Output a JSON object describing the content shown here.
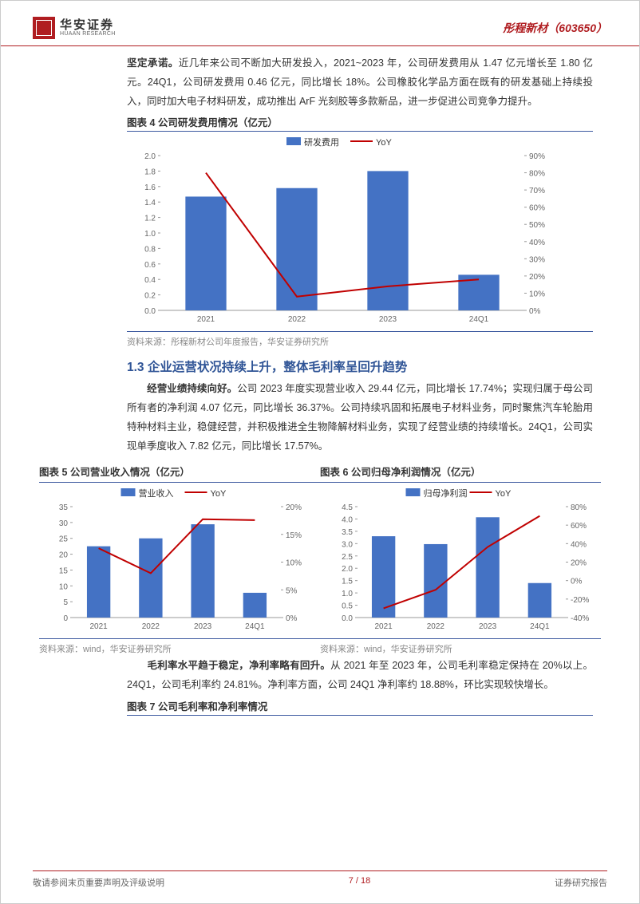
{
  "header": {
    "logo_cn": "华安证券",
    "logo_en": "HUAAN RESEARCH",
    "title": "彤程新材（603650）"
  },
  "intro_para": {
    "bold_lead": "坚定承诺。",
    "text": "近几年来公司不断加大研发投入，2021~2023 年，公司研发费用从 1.47 亿元增长至 1.80 亿元。24Q1，公司研发费用 0.46 亿元，同比增长 18%。公司橡胶化学品方面在既有的研发基础上持续投入，同时加大电子材料研发，成功推出 ArF 光刻胶等多款新品，进一步促进公司竞争力提升。"
  },
  "fig4": {
    "title": "图表 4 公司研发费用情况（亿元）",
    "legend_bar": "研发费用",
    "legend_line": "YoY",
    "categories": [
      "2021",
      "2022",
      "2023",
      "24Q1"
    ],
    "bar_values": [
      1.47,
      1.58,
      1.8,
      0.46
    ],
    "line_values_pct": [
      80,
      8,
      14,
      18
    ],
    "bar_color": "#4472c4",
    "line_color": "#c00000",
    "y1_max": 2.0,
    "y1_step": 0.2,
    "y2_max": 90,
    "y2_step": 10,
    "source": "资料来源：彤程新材公司年度报告，华安证券研究所"
  },
  "section_title": "1.3 企业运营状况持续上升，整体毛利率呈回升趋势",
  "para2": {
    "bold_lead": "经营业绩持续向好。",
    "text": "公司 2023 年度实现营业收入 29.44 亿元，同比增长 17.74%；实现归属于母公司所有者的净利润 4.07 亿元，同比增长 36.37%。公司持续巩固和拓展电子材料业务，同时聚焦汽车轮胎用特种材料主业，稳健经营，并积极推进全生物降解材料业务，实现了经营业绩的持续增长。24Q1，公司实现单季度收入 7.82 亿元，同比增长 17.57%。"
  },
  "fig5": {
    "title": "图表 5 公司营业收入情况（亿元）",
    "legend_bar": "营业收入",
    "legend_line": "YoY",
    "categories": [
      "2021",
      "2022",
      "2023",
      "24Q1"
    ],
    "bar_values": [
      22.5,
      25.0,
      29.44,
      7.82
    ],
    "line_values_pct": [
      12.5,
      8,
      17.74,
      17.57
    ],
    "bar_color": "#4472c4",
    "line_color": "#c00000",
    "y1_max": 35,
    "y1_step": 5,
    "y2_max": 20,
    "y2_step": 5,
    "source": "资料来源：wind，华安证券研究所"
  },
  "fig6": {
    "title": "图表 6 公司归母净利润情况（亿元）",
    "legend_bar": "归母净利润",
    "legend_line": "YoY",
    "categories": [
      "2021",
      "2022",
      "2023",
      "24Q1"
    ],
    "bar_values": [
      3.3,
      2.98,
      4.07,
      1.4
    ],
    "line_values_pct": [
      -30,
      -10,
      36.37,
      70
    ],
    "bar_color": "#4472c4",
    "line_color": "#c00000",
    "y1_max": 4.5,
    "y1_step": 0.5,
    "y2_min": -40,
    "y2_max": 80,
    "y2_step": 20,
    "source": "资料来源：wind，华安证券研究所"
  },
  "para3": {
    "bold_lead": "毛利率水平趋于稳定，净利率略有回升。",
    "text": "从 2021 年至 2023 年，公司毛利率稳定保持在 20%以上。24Q1，公司毛利率约 24.81%。净利率方面，公司 24Q1 净利率约 18.88%，环比实现较快增长。"
  },
  "fig7_title": "图表 7 公司毛利率和净利率情况",
  "footer": {
    "left": "敬请参阅末页重要声明及评级说明",
    "page": "7 / 18",
    "right": "证券研究报告"
  },
  "colors": {
    "brand_red": "#b01d21",
    "heading_blue": "#2f5496",
    "chart_border": "#3d5aa0",
    "axis_gray": "#888888"
  }
}
